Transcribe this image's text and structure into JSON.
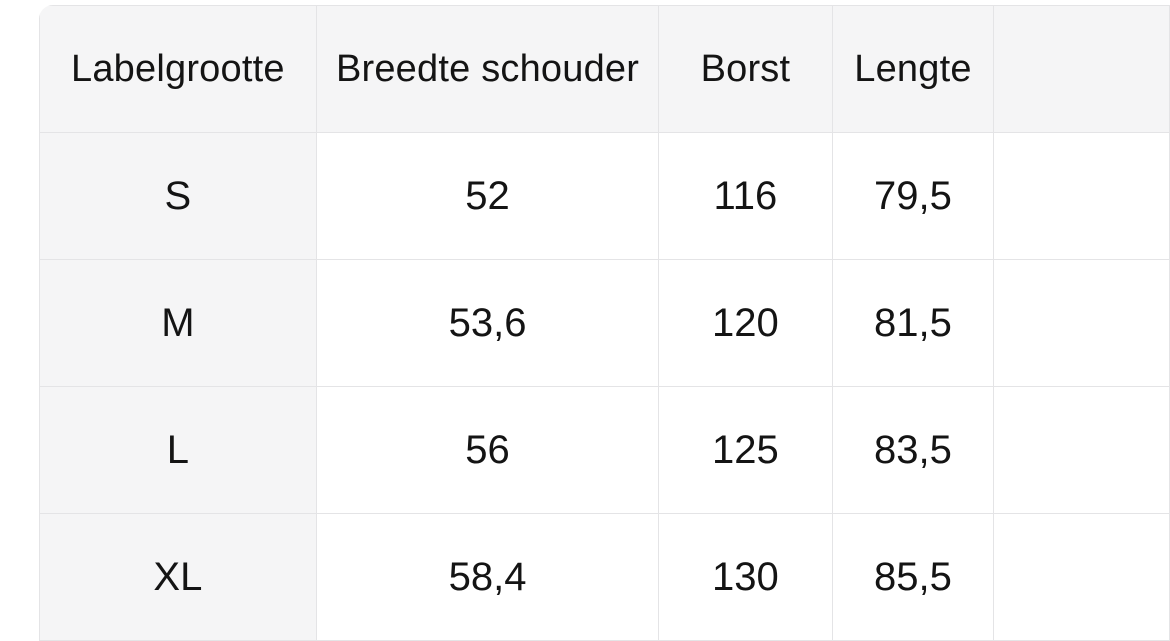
{
  "page": {
    "background_color": "#ffffff"
  },
  "size_chart": {
    "columns": [
      {
        "label": "Labelgrootte"
      },
      {
        "label": "Breedte schouder"
      },
      {
        "label": "Borst"
      },
      {
        "label": "Lengte"
      },
      {
        "label": ""
      }
    ],
    "rows": [
      {
        "size": "S",
        "breedte_schouder": "52",
        "borst": "116",
        "lengte": "79,5",
        "extra": ""
      },
      {
        "size": "M",
        "breedte_schouder": "53,6",
        "borst": "120",
        "lengte": "81,5",
        "extra": ""
      },
      {
        "size": "L",
        "breedte_schouder": "56",
        "borst": "125",
        "lengte": "83,5",
        "extra": ""
      },
      {
        "size": "XL",
        "breedte_schouder": "58,4",
        "borst": "130",
        "lengte": "85,5",
        "extra": ""
      }
    ],
    "colors": {
      "page_background": "#ffffff",
      "header_background": "#f5f5f6",
      "row_label_background": "#f5f5f6",
      "cell_background": "#ffffff",
      "border": "#e4e4e6",
      "text": "#141414"
    }
  }
}
